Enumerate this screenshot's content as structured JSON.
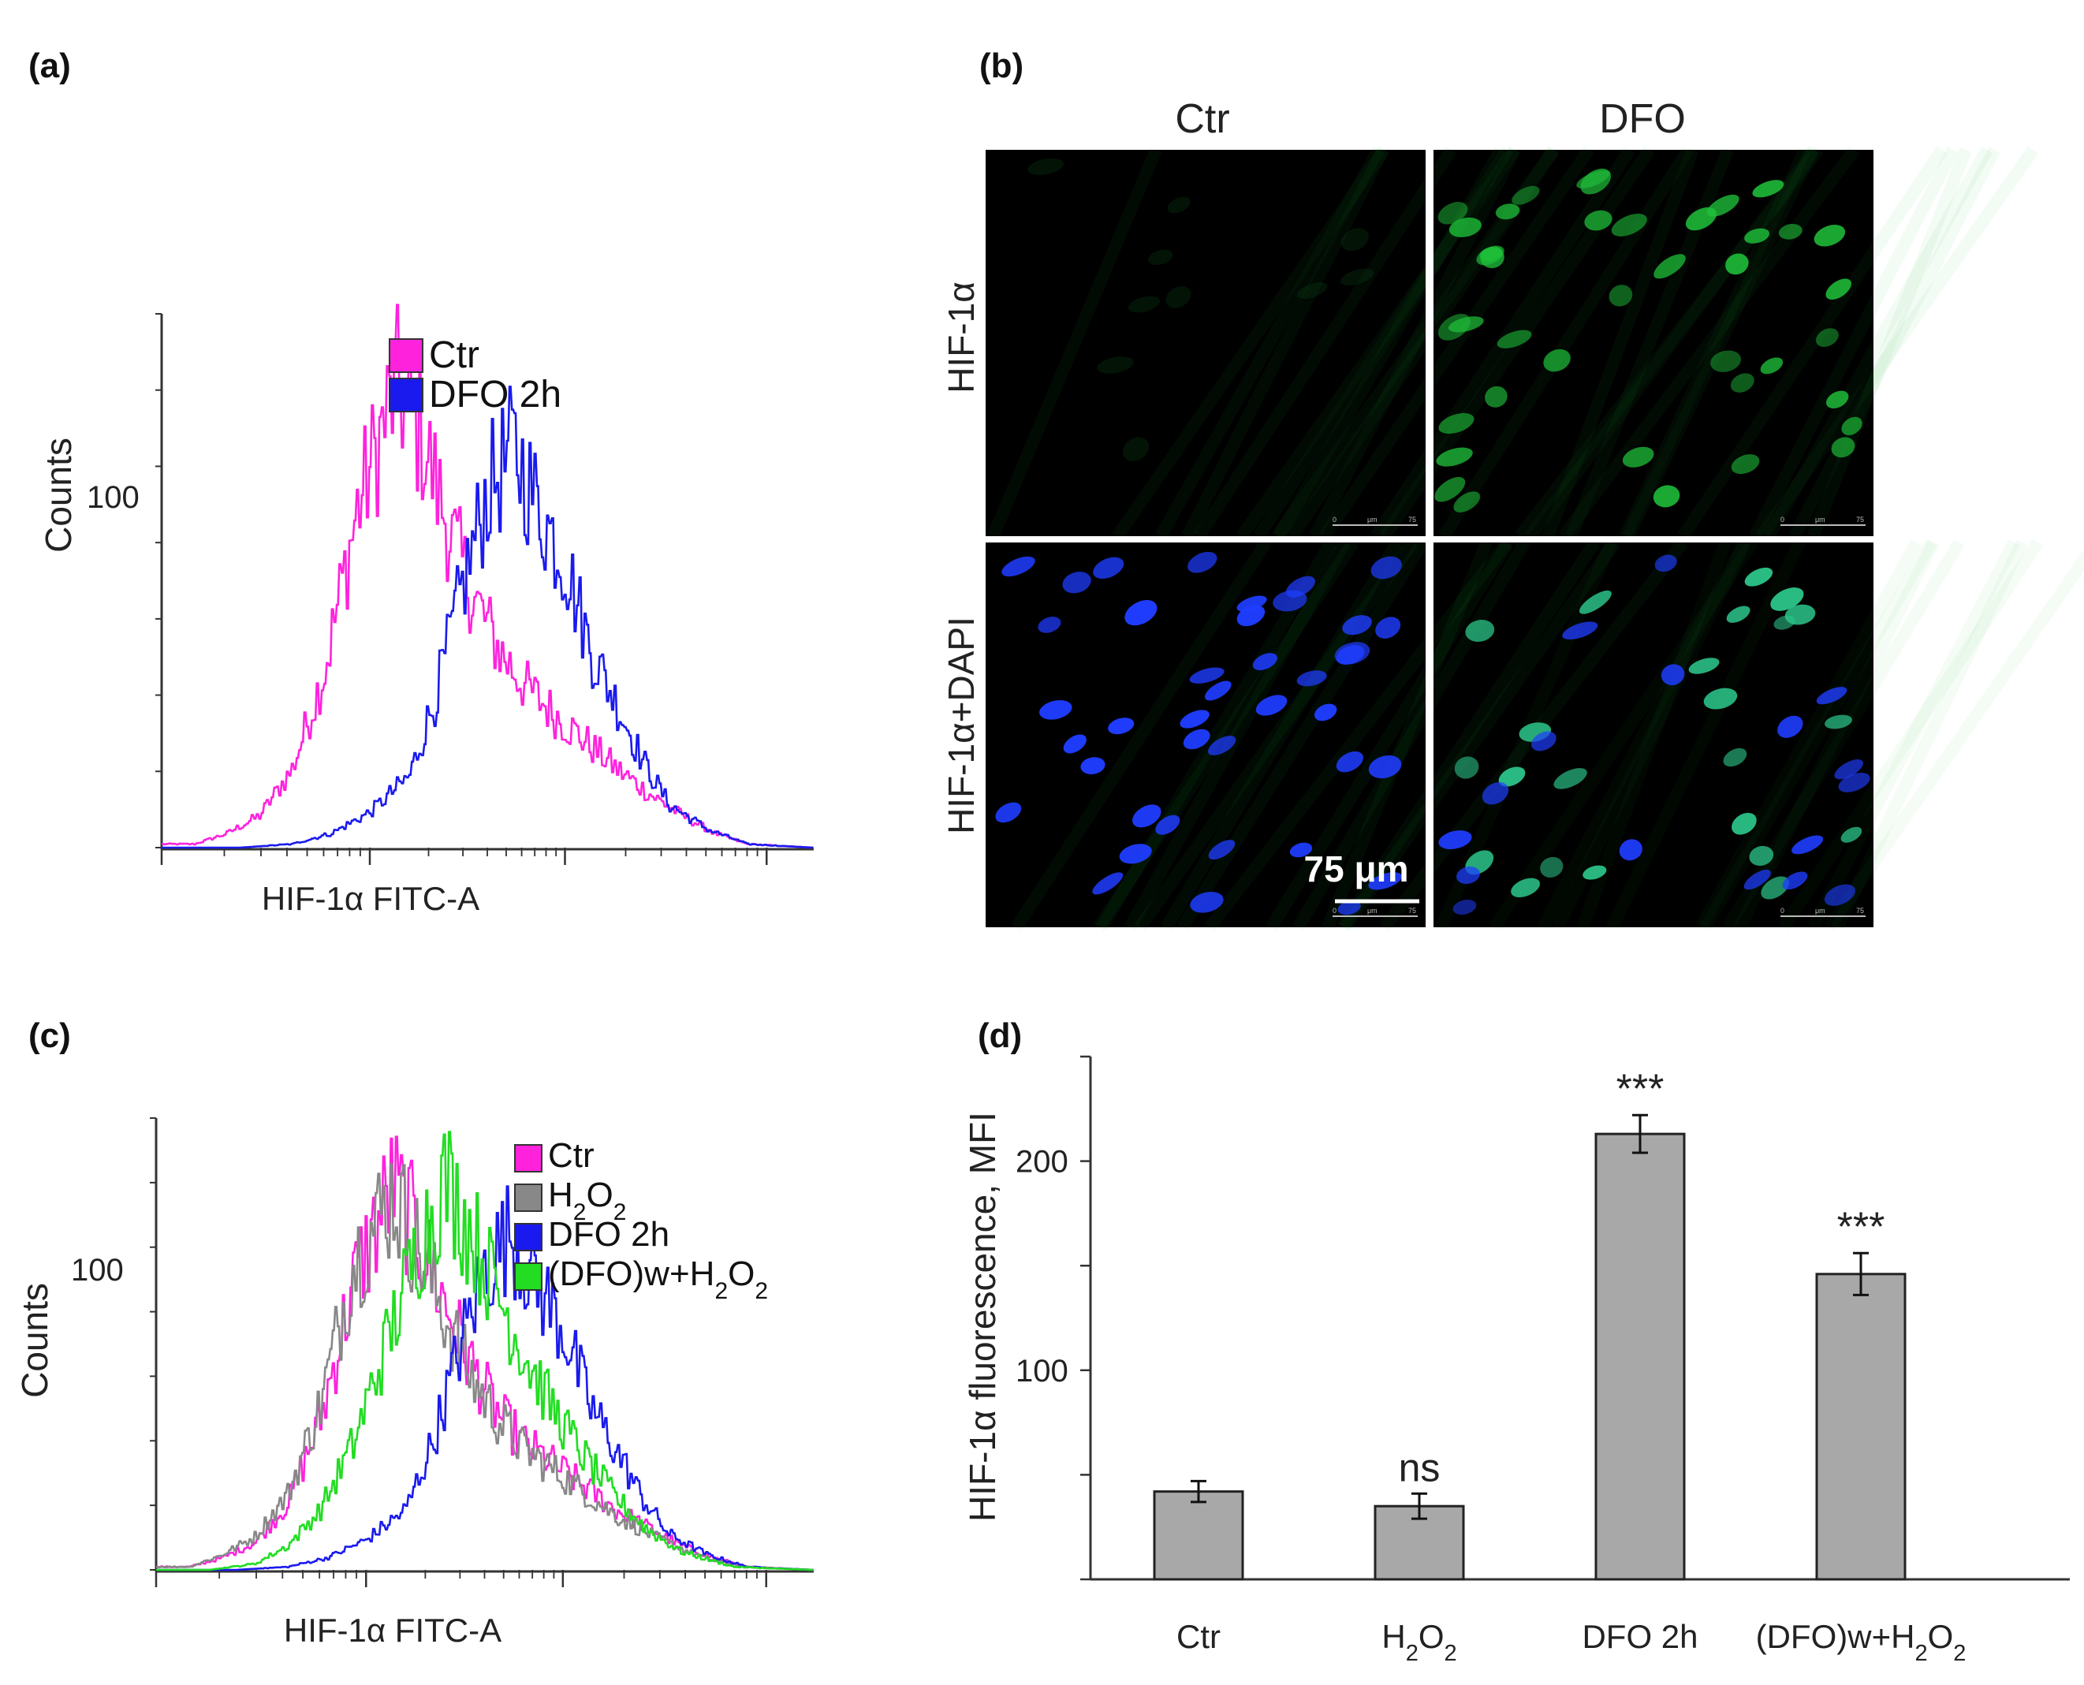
{
  "panels": {
    "a": {
      "label": "(a)"
    },
    "b": {
      "label": "(b)",
      "col_labels": [
        "Ctr",
        "DFO"
      ],
      "row_labels": [
        "HIF-1α",
        "HIF-1α+DAPI"
      ],
      "scale_bar": "75 μm",
      "micro_scale": {
        "zero": "0",
        "unit": "μm",
        "end": "75"
      }
    },
    "c": {
      "label": "(c)"
    },
    "d": {
      "label": "(d)"
    }
  },
  "colors": {
    "ctr": "#ff22dd",
    "h2o2": "#888888",
    "dfo": "#1a1aee",
    "dfo_w_h2o2": "#22dd22",
    "bar_fill": "#a8a8a8",
    "micro_bg": "#000000",
    "hif_green": "#1fbf3a",
    "dapi_blue": "#1f3dff"
  },
  "chart_data": [
    {
      "panel": "a",
      "type": "line",
      "xlabel": "HIF-1α  FITC-A",
      "ylabel": "Counts",
      "y_tick_labels": [
        {
          "label": "100",
          "value": 100
        }
      ],
      "ylim": [
        0,
        150
      ],
      "x_scale": "log",
      "legend_position": "top-right",
      "series": [
        {
          "name": "Ctr",
          "color_key": "ctr",
          "x": [
            0.05,
            0.1,
            0.15,
            0.2,
            0.25,
            0.3,
            0.36,
            0.4,
            0.44,
            0.48,
            0.52,
            0.56,
            0.6,
            0.65,
            0.7,
            0.75,
            0.8,
            0.85,
            0.9,
            1.0
          ],
          "y": [
            1,
            4,
            9,
            22,
            50,
            95,
            130,
            115,
            90,
            70,
            55,
            45,
            38,
            30,
            22,
            15,
            9,
            4,
            1,
            0
          ]
        },
        {
          "name": "DFO 2h",
          "color_key": "dfo",
          "x": [
            0.12,
            0.2,
            0.26,
            0.32,
            0.38,
            0.42,
            0.46,
            0.5,
            0.54,
            0.58,
            0.62,
            0.66,
            0.7,
            0.74,
            0.78,
            0.84,
            0.9,
            1.0
          ],
          "y": [
            0,
            1,
            4,
            10,
            20,
            42,
            72,
            100,
            112,
            95,
            80,
            55,
            40,
            24,
            12,
            5,
            1,
            0
          ]
        }
      ]
    },
    {
      "panel": "c",
      "type": "line",
      "xlabel": "HIF-1α  FITC-A",
      "ylabel": "Counts",
      "y_tick_labels": [
        {
          "label": "100",
          "value": 100
        }
      ],
      "ylim": [
        0,
        150
      ],
      "x_scale": "log",
      "legend_position": "top-right",
      "series": [
        {
          "name": "Ctr",
          "color_key": "ctr",
          "x": [
            0.05,
            0.1,
            0.15,
            0.2,
            0.25,
            0.3,
            0.36,
            0.4,
            0.44,
            0.48,
            0.52,
            0.56,
            0.6,
            0.65,
            0.7,
            0.75,
            0.8,
            0.85,
            0.9,
            1.0
          ],
          "y": [
            1,
            4,
            9,
            22,
            50,
            95,
            128,
            110,
            88,
            68,
            52,
            42,
            36,
            28,
            20,
            14,
            8,
            4,
            1,
            0
          ]
        },
        {
          "name": "H₂O₂",
          "color_key": "h2o2",
          "x": [
            0.05,
            0.1,
            0.15,
            0.2,
            0.25,
            0.3,
            0.36,
            0.4,
            0.44,
            0.48,
            0.52,
            0.56,
            0.6,
            0.65,
            0.7,
            0.75,
            0.8,
            0.85,
            0.9,
            1.0
          ],
          "y": [
            1,
            5,
            11,
            25,
            55,
            102,
            125,
            106,
            84,
            64,
            50,
            40,
            34,
            26,
            18,
            12,
            7,
            3,
            1,
            0
          ]
        },
        {
          "name": "DFO 2h",
          "color_key": "dfo",
          "x": [
            0.12,
            0.2,
            0.26,
            0.32,
            0.38,
            0.42,
            0.46,
            0.5,
            0.54,
            0.58,
            0.62,
            0.66,
            0.7,
            0.74,
            0.78,
            0.84,
            0.9,
            1.0
          ],
          "y": [
            0,
            1,
            4,
            10,
            20,
            42,
            72,
            100,
            112,
            95,
            80,
            55,
            40,
            24,
            12,
            5,
            1,
            0
          ]
        },
        {
          "name": "(DFO)w+H₂O₂",
          "color_key": "dfo_w_h2o2",
          "x": [
            0.08,
            0.15,
            0.2,
            0.25,
            0.3,
            0.35,
            0.4,
            0.44,
            0.48,
            0.52,
            0.56,
            0.6,
            0.65,
            0.7,
            0.75,
            0.8,
            0.88,
            1.0
          ],
          "y": [
            0,
            2,
            8,
            20,
            42,
            75,
            108,
            130,
            112,
            92,
            72,
            55,
            38,
            24,
            13,
            6,
            1,
            0
          ]
        }
      ]
    },
    {
      "panel": "d",
      "type": "bar",
      "categories": [
        "Ctr",
        "H₂O₂",
        "DFO 2h",
        "(DFO)w+H₂O₂"
      ],
      "values": [
        42,
        35,
        213,
        146
      ],
      "errors": [
        5,
        6,
        9,
        10
      ],
      "annotations": [
        "",
        "ns",
        "***",
        "***"
      ],
      "ylabel": "HIF-1α  fluorescence, MFI",
      "xlabel": "",
      "ylim": [
        0,
        250
      ],
      "y_tick_labels": [
        {
          "label": "100",
          "value": 100
        },
        {
          "label": "200",
          "value": 200
        }
      ]
    }
  ]
}
